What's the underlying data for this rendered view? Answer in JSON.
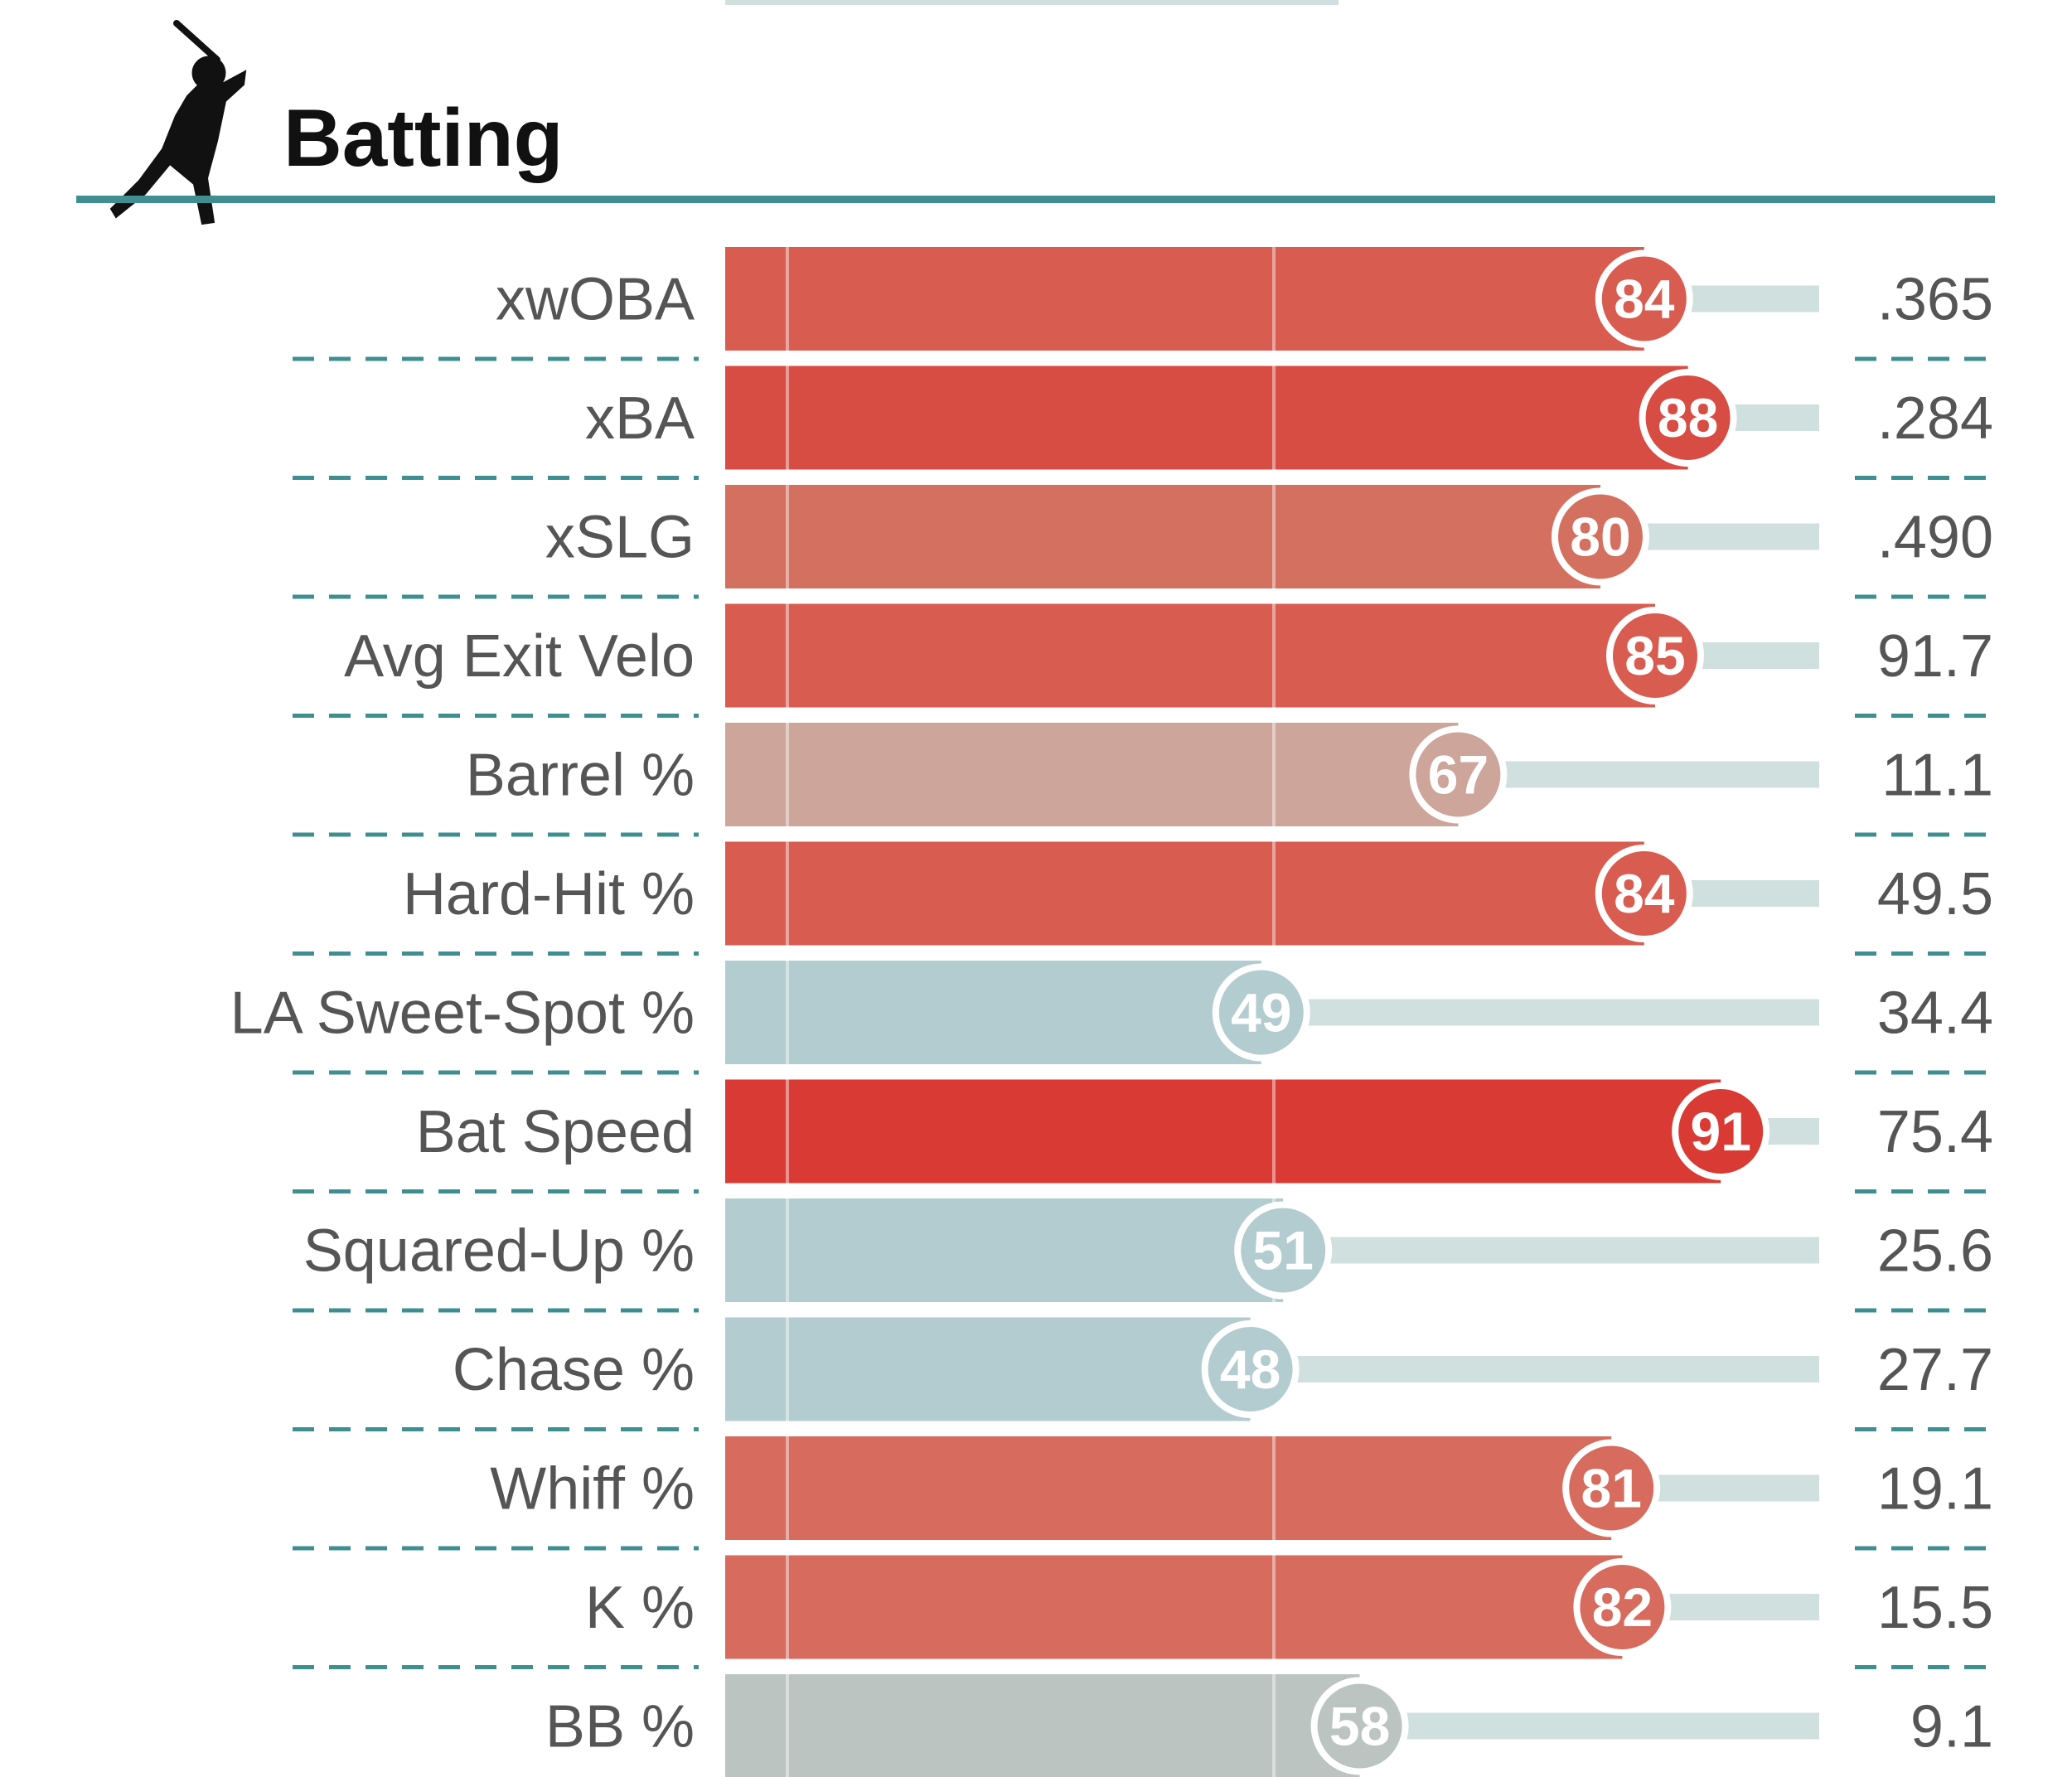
{
  "section": {
    "title": "Batting",
    "icon": "batter-silhouette-icon"
  },
  "colors": {
    "accent_teal": "#3f8f92",
    "high": "#d93a33",
    "neutral_red": "#cda59a",
    "low_blue": "#b3ccd0",
    "neutral_gray": "#bcc4c2",
    "track": "#cfe0de"
  },
  "chart_data": {
    "type": "bar",
    "orientation": "horizontal",
    "title": "Batting",
    "xlim": [
      0,
      100
    ],
    "gridlines_at": [
      0,
      50,
      100
    ],
    "categories": [
      "xwOBA",
      "xBA",
      "xSLG",
      "Avg Exit Velo",
      "Barrel %",
      "Hard-Hit %",
      "LA Sweet-Spot %",
      "Bat Speed",
      "Squared-Up %",
      "Chase %",
      "Whiff %",
      "K %",
      "BB %"
    ],
    "percentiles": [
      84,
      88,
      80,
      85,
      67,
      84,
      49,
      91,
      51,
      48,
      81,
      82,
      58
    ],
    "stat_values": [
      ".365",
      ".284",
      ".490",
      "91.7",
      "11.1",
      "49.5",
      "34.4",
      "75.4",
      "25.6",
      "27.7",
      "19.1",
      "15.5",
      "9.1"
    ],
    "bar_colors": [
      "#d95c50",
      "#d74c43",
      "#d4705f",
      "#d95c50",
      "#cda59a",
      "#d95c50",
      "#b3ccd0",
      "#d93a33",
      "#b3ccd0",
      "#b3ccd0",
      "#d66b5e",
      "#d66b5e",
      "#bcc4c2"
    ]
  }
}
